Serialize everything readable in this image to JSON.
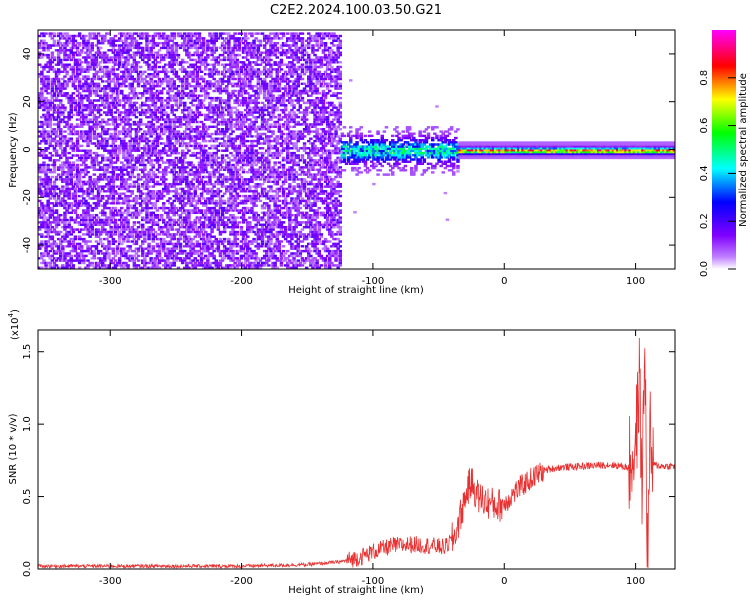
{
  "chart_data": [
    {
      "type": "heatmap",
      "title": "C2E2.2024.100.03.50.G21",
      "xlabel": "Height of straight line (km)",
      "ylabel": "Frequency (Hz)",
      "xlim": [
        -355,
        130
      ],
      "ylim": [
        -50,
        50
      ],
      "xticks": [
        -300,
        -200,
        -100,
        0,
        100
      ],
      "yticks": [
        -40,
        -20,
        0,
        20,
        40
      ],
      "colorbar": {
        "label": "Normalized spectral amplitude",
        "range": [
          0,
          1
        ],
        "ticks": [
          "0.0",
          "0.2",
          "0.4",
          "0.6",
          "0.8"
        ],
        "colormap": "gist_rainbow_r",
        "colors": [
          "#ffffff",
          "#8000ff",
          "#0000ff",
          "#00ffff",
          "#00ff00",
          "#ffff00",
          "#ff0000",
          "#ff00ff"
        ]
      },
      "regions": [
        {
          "x_from": -355,
          "x_to": -125,
          "freq_spread_hz": 50,
          "amplitude": 0.05,
          "description": "broadband noise"
        },
        {
          "x_from": -125,
          "x_to": -35,
          "freq_spread_hz": 8,
          "amplitude": 0.35,
          "description": "signal emerging"
        },
        {
          "x_from": -35,
          "x_to": 130,
          "freq_spread_hz": 2,
          "amplitude": 0.9,
          "description": "narrow carrier near 0 Hz"
        }
      ]
    },
    {
      "type": "line",
      "xlabel": "Height of straight line (km)",
      "ylabel": "SNR (10 * v/v)",
      "y_multiplier": "(x10",
      "y_multiplier_exp": "4",
      "y_multiplier_close": ")",
      "xlim": [
        -355,
        130
      ],
      "ylim": [
        0,
        1.65
      ],
      "xticks": [
        -300,
        -200,
        -100,
        0,
        100
      ],
      "yticks": [
        "0.0",
        "0.5",
        "1.0",
        "1.5"
      ],
      "series": [
        {
          "color": "#e83030",
          "points": [
            [
              -355,
              0.02
            ],
            [
              -300,
              0.02
            ],
            [
              -250,
              0.02
            ],
            [
              -200,
              0.02
            ],
            [
              -150,
              0.03
            ],
            [
              -125,
              0.05
            ],
            [
              -110,
              0.08
            ],
            [
              -100,
              0.12
            ],
            [
              -85,
              0.16
            ],
            [
              -70,
              0.17
            ],
            [
              -55,
              0.16
            ],
            [
              -45,
              0.15
            ],
            [
              -38,
              0.22
            ],
            [
              -33,
              0.38
            ],
            [
              -28,
              0.55
            ],
            [
              -25,
              0.6
            ],
            [
              -20,
              0.5
            ],
            [
              -15,
              0.47
            ],
            [
              -10,
              0.45
            ],
            [
              -5,
              0.44
            ],
            [
              0,
              0.45
            ],
            [
              10,
              0.55
            ],
            [
              20,
              0.62
            ],
            [
              30,
              0.68
            ],
            [
              40,
              0.7
            ],
            [
              60,
              0.71
            ],
            [
              80,
              0.72
            ],
            [
              90,
              0.71
            ],
            [
              95,
              0.7
            ],
            [
              100,
              0.85
            ],
            [
              103,
              1.3
            ],
            [
              105,
              0.5
            ],
            [
              107,
              1.62
            ],
            [
              109,
              0.05
            ],
            [
              111,
              0.9
            ],
            [
              113,
              0.72
            ],
            [
              120,
              0.71
            ],
            [
              130,
              0.71
            ]
          ]
        }
      ]
    }
  ]
}
